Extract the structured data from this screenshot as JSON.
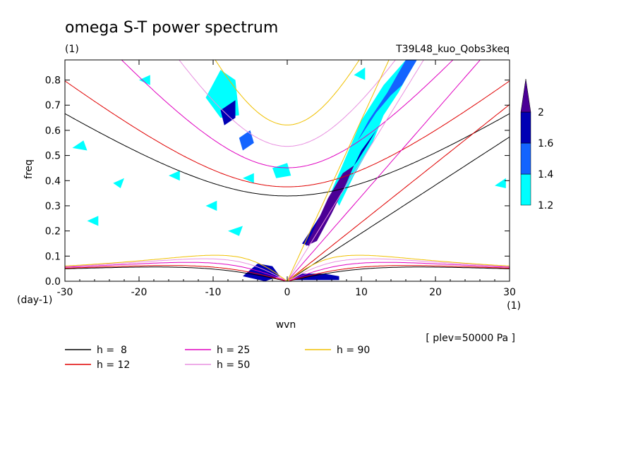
{
  "chart_data": {
    "type": "heatmap",
    "title": "omega S-T power spectrum",
    "subtitle_units": "(1)",
    "run_label": "T39L48_kuo_Qobs3keq",
    "xlabel": "wvn",
    "ylabel": "freq",
    "x_units": "(1)",
    "y_units": "(day-1)",
    "xlim": [
      -30,
      30
    ],
    "ylim": [
      0,
      0.88
    ],
    "x_ticks": [
      -30,
      -20,
      -10,
      0,
      10,
      20,
      30
    ],
    "y_ticks": [
      0.0,
      0.1,
      0.2,
      0.3,
      0.4,
      0.5,
      0.6,
      0.7,
      0.8
    ],
    "x_tick_labels": [
      "-30",
      "-20",
      "-10",
      "0",
      "10",
      "20",
      "30"
    ],
    "y_tick_labels": [
      "0.0",
      "0.1",
      "0.2",
      "0.3",
      "0.4",
      "0.5",
      "0.6",
      "0.7",
      "0.8"
    ],
    "level_note": "[ plev=50000 Pa ]",
    "colorbar": {
      "levels": [
        1.2,
        1.4,
        1.6,
        2
      ],
      "level_labels": [
        "1.2",
        "1.4",
        "1.6",
        "2"
      ],
      "colors": [
        "#00ffff",
        "#1464ff",
        "#0000b4",
        "#4b0096"
      ]
    },
    "dispersion_curves": [
      {
        "label": "h =  8",
        "h": 8,
        "color": "#000000"
      },
      {
        "label": "h = 12",
        "h": 12,
        "color": "#e00000"
      },
      {
        "label": "h = 25",
        "h": 25,
        "color": "#e000c0"
      },
      {
        "label": "h = 50",
        "h": 50,
        "color": "#e890e0"
      },
      {
        "label": "h = 90",
        "h": 90,
        "color": "#f0c000"
      }
    ],
    "power_regions": [
      {
        "name": "kelvin-band-1",
        "level": 2,
        "points": [
          [
            2.5,
            0.14
          ],
          [
            3.5,
            0.2
          ],
          [
            5.5,
            0.33
          ],
          [
            7.5,
            0.43
          ],
          [
            9,
            0.46
          ],
          [
            8,
            0.39
          ],
          [
            6,
            0.27
          ],
          [
            4,
            0.16
          ]
        ]
      },
      {
        "name": "kelvin-band-2",
        "level": 1.6,
        "points": [
          [
            2,
            0.15
          ],
          [
            4,
            0.24
          ],
          [
            7,
            0.38
          ],
          [
            9.5,
            0.48
          ],
          [
            11,
            0.55
          ],
          [
            12,
            0.6
          ],
          [
            10,
            0.52
          ],
          [
            8,
            0.4
          ],
          [
            5,
            0.25
          ],
          [
            3,
            0.14
          ]
        ]
      },
      {
        "name": "kelvin-band-3",
        "level": 1.4,
        "points": [
          [
            10,
            0.58
          ],
          [
            12,
            0.67
          ],
          [
            14,
            0.74
          ],
          [
            15.5,
            0.78
          ],
          [
            17.5,
            0.88
          ],
          [
            16,
            0.88
          ],
          [
            13.5,
            0.75
          ],
          [
            11,
            0.64
          ],
          [
            9.5,
            0.56
          ]
        ]
      },
      {
        "name": "kelvin-band-4",
        "level": 1.2,
        "points": [
          [
            7,
            0.3
          ],
          [
            9,
            0.42
          ],
          [
            11.5,
            0.55
          ],
          [
            13,
            0.66
          ],
          [
            15,
            0.75
          ],
          [
            17,
            0.86
          ],
          [
            16,
            0.88
          ],
          [
            13,
            0.78
          ],
          [
            10,
            0.64
          ],
          [
            8,
            0.5
          ],
          [
            6,
            0.36
          ]
        ]
      },
      {
        "name": "low-freq-blob",
        "level": 1.6,
        "points": [
          [
            0.5,
            0.005
          ],
          [
            2,
            0.03
          ],
          [
            5,
            0.03
          ],
          [
            7,
            0.02
          ],
          [
            7,
            0.005
          ]
        ]
      },
      {
        "name": "low-freq-west",
        "level": 1.6,
        "points": [
          [
            -6,
            0.02
          ],
          [
            -4,
            0.07
          ],
          [
            -2,
            0.06
          ],
          [
            -1,
            0.02
          ],
          [
            -3,
            0.0
          ]
        ]
      },
      {
        "name": "er-patch-1",
        "level": 1.6,
        "points": [
          [
            -9,
            0.68
          ],
          [
            -7,
            0.72
          ],
          [
            -7,
            0.65
          ],
          [
            -8.5,
            0.62
          ]
        ]
      },
      {
        "name": "er-patch-2",
        "level": 1.2,
        "points": [
          [
            -11,
            0.73
          ],
          [
            -9,
            0.84
          ],
          [
            -7,
            0.8
          ],
          [
            -6.5,
            0.66
          ],
          [
            -9,
            0.65
          ]
        ]
      },
      {
        "name": "er-patch-3",
        "level": 1.4,
        "points": [
          [
            -6.5,
            0.57
          ],
          [
            -5,
            0.6
          ],
          [
            -4.5,
            0.55
          ],
          [
            -6,
            0.52
          ]
        ]
      },
      {
        "name": "er-patch-4",
        "level": 1.2,
        "points": [
          [
            -2,
            0.45
          ],
          [
            0,
            0.47
          ],
          [
            0.5,
            0.42
          ],
          [
            -1.5,
            0.41
          ]
        ]
      },
      {
        "name": "scatter-1",
        "level": 1.2,
        "points": [
          [
            -29,
            0.53
          ],
          [
            -27.5,
            0.56
          ],
          [
            -27,
            0.52
          ]
        ]
      },
      {
        "name": "scatter-2",
        "level": 1.2,
        "points": [
          [
            -23.5,
            0.39
          ],
          [
            -22,
            0.41
          ],
          [
            -22.5,
            0.37
          ]
        ]
      },
      {
        "name": "scatter-3",
        "level": 1.2,
        "points": [
          [
            -16,
            0.42
          ],
          [
            -14.5,
            0.44
          ],
          [
            -14.5,
            0.4
          ]
        ]
      },
      {
        "name": "scatter-4",
        "level": 1.2,
        "points": [
          [
            -8,
            0.2
          ],
          [
            -6,
            0.22
          ],
          [
            -6.5,
            0.18
          ]
        ]
      },
      {
        "name": "scatter-5",
        "level": 1.2,
        "points": [
          [
            -11,
            0.3
          ],
          [
            -9.5,
            0.32
          ],
          [
            -9.5,
            0.28
          ]
        ]
      },
      {
        "name": "scatter-6",
        "level": 1.2,
        "points": [
          [
            -6,
            0.41
          ],
          [
            -4.5,
            0.43
          ],
          [
            -4.5,
            0.39
          ]
        ]
      },
      {
        "name": "scatter-7",
        "level": 1.2,
        "points": [
          [
            28,
            0.38
          ],
          [
            29.5,
            0.41
          ],
          [
            29.5,
            0.37
          ]
        ]
      },
      {
        "name": "scatter-8",
        "level": 1.2,
        "points": [
          [
            9,
            0.82
          ],
          [
            10.5,
            0.85
          ],
          [
            10.5,
            0.8
          ]
        ]
      },
      {
        "name": "scatter-9",
        "level": 1.2,
        "points": [
          [
            -20,
            0.8
          ],
          [
            -18.5,
            0.82
          ],
          [
            -18.5,
            0.78
          ]
        ]
      },
      {
        "name": "scatter-10",
        "level": 1.2,
        "points": [
          [
            -27,
            0.24
          ],
          [
            -25.5,
            0.26
          ],
          [
            -25.5,
            0.22
          ]
        ]
      }
    ]
  }
}
